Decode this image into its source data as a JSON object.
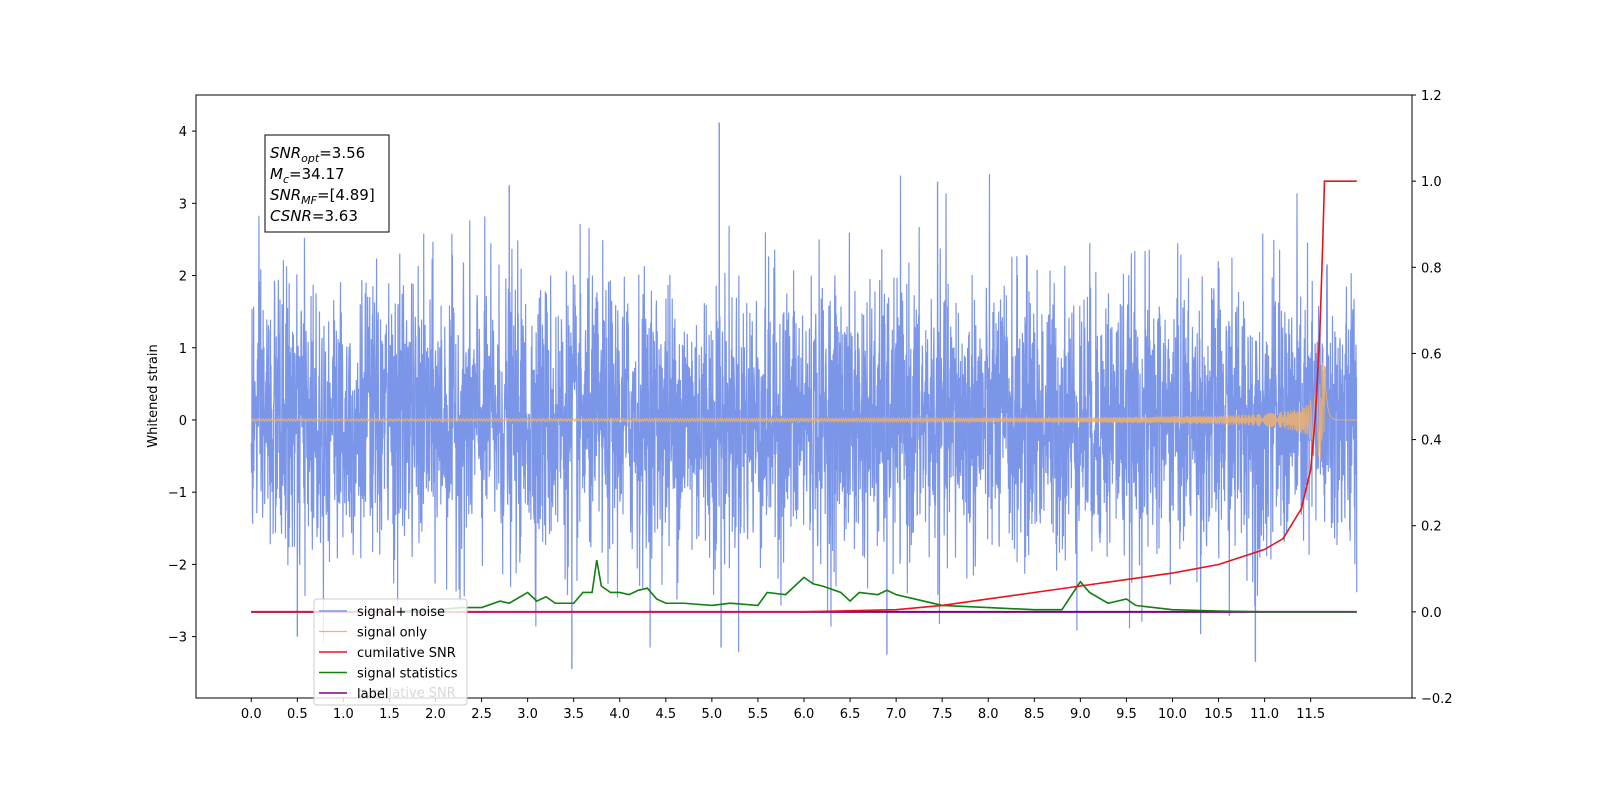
{
  "chart_data": {
    "type": "line",
    "ylabel_left": "Whitened strain",
    "ylabel_right": "",
    "xlabel": "",
    "xlim": [
      -0.6,
      12.6
    ],
    "ylim_left": [
      -3.85,
      4.5
    ],
    "ylim_right": [
      -0.2,
      1.2
    ],
    "x_ticks": [
      "0.0",
      "0.5",
      "1.0",
      "1.5",
      "2.0",
      "2.5",
      "3.0",
      "3.5",
      "4.0",
      "4.5",
      "5.0",
      "5.5",
      "6.0",
      "6.5",
      "7.0",
      "7.5",
      "8.0",
      "8.5",
      "9.0",
      "9.5",
      "10.0",
      "10.5",
      "11.0",
      "11.5"
    ],
    "y_ticks_left": [
      "−3",
      "−2",
      "−1",
      "0",
      "1",
      "2",
      "3",
      "4"
    ],
    "y_ticks_right": [
      "−0.2",
      "0.0",
      "0.2",
      "0.4",
      "0.6",
      "0.8",
      "1.0",
      "1.2"
    ],
    "grid": false,
    "legend_position": "lower-left",
    "annotation": {
      "lines": [
        {
          "base": "SNR",
          "sub": "opt",
          "value": "=3.56"
        },
        {
          "base": "M",
          "sub": "c",
          "value": "=34.17"
        },
        {
          "base": "SNR",
          "sub": "MF",
          "value": "=[4.89]"
        },
        {
          "base": "CSNR",
          "sub": "",
          "value": "=3.63"
        }
      ]
    },
    "series": [
      {
        "name": "signal+ noise",
        "axis": "left",
        "color": "#7b95e8",
        "description_range": [
          -3.45,
          4.12
        ],
        "x_range": [
          0.0,
          12.0
        ]
      },
      {
        "name": "signal only",
        "axis": "left",
        "color": "#f0b26c",
        "peak_amplitude": 0.8,
        "peak_x": 11.65,
        "x_range": [
          0.0,
          12.0
        ]
      },
      {
        "name": "cumilative SNR",
        "axis": "right",
        "color": "#e8141c",
        "x": [
          0.0,
          6.0,
          7.0,
          7.5,
          8.0,
          8.5,
          9.0,
          9.5,
          10.0,
          10.5,
          11.0,
          11.2,
          11.4,
          11.5,
          11.55,
          11.6,
          11.63,
          11.65,
          11.7,
          12.0
        ],
        "y": [
          0.0,
          0.0,
          0.005,
          0.015,
          0.03,
          0.045,
          0.06,
          0.075,
          0.09,
          0.11,
          0.145,
          0.17,
          0.24,
          0.33,
          0.45,
          0.65,
          0.85,
          1.0,
          1.0,
          1.0
        ]
      },
      {
        "name": "signal statistics",
        "axis": "right",
        "color": "#108010",
        "x": [
          0.0,
          0.5,
          1.0,
          1.5,
          2.0,
          2.3,
          2.5,
          2.7,
          2.8,
          3.0,
          3.1,
          3.2,
          3.3,
          3.5,
          3.6,
          3.7,
          3.75,
          3.8,
          3.9,
          4.0,
          4.1,
          4.2,
          4.3,
          4.4,
          4.5,
          4.7,
          5.0,
          5.2,
          5.5,
          5.6,
          5.8,
          6.0,
          6.1,
          6.2,
          6.4,
          6.5,
          6.6,
          6.8,
          6.9,
          7.0,
          7.2,
          7.5,
          8.0,
          8.5,
          8.8,
          9.0,
          9.1,
          9.3,
          9.5,
          9.6,
          9.8,
          10.0,
          10.5,
          11.0,
          12.0
        ],
        "y": [
          0.0,
          0.0,
          0.0,
          0.0,
          0.005,
          0.01,
          0.01,
          0.025,
          0.02,
          0.045,
          0.025,
          0.035,
          0.02,
          0.02,
          0.045,
          0.045,
          0.12,
          0.06,
          0.045,
          0.045,
          0.04,
          0.05,
          0.055,
          0.03,
          0.02,
          0.02,
          0.015,
          0.02,
          0.015,
          0.045,
          0.04,
          0.08,
          0.065,
          0.06,
          0.045,
          0.025,
          0.045,
          0.04,
          0.05,
          0.04,
          0.03,
          0.015,
          0.01,
          0.005,
          0.005,
          0.07,
          0.045,
          0.02,
          0.03,
          0.015,
          0.01,
          0.005,
          0.002,
          0.0,
          0.0
        ]
      },
      {
        "name": "label",
        "axis": "right",
        "color": "#800080",
        "x": [
          0.0,
          12.0
        ],
        "y": [
          0.0,
          0.0
        ]
      }
    ],
    "legend_ghost_text": "cumilative SNR"
  }
}
